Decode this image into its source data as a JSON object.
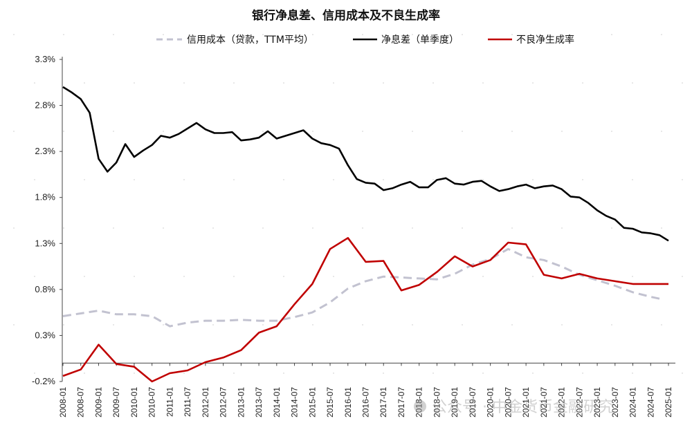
{
  "chart_data": {
    "type": "line",
    "title": "银行净息差、信用成本及不良生成率",
    "xlabel": "",
    "ylabel": "",
    "ylim": [
      -0.2,
      3.3
    ],
    "y_ticks": [
      "3.3%",
      "2.8%",
      "2.3%",
      "1.8%",
      "1.3%",
      "0.8%",
      "0.3%",
      "-0.2%"
    ],
    "y_tick_values": [
      3.3,
      2.8,
      2.3,
      1.8,
      1.3,
      0.8,
      0.3,
      -0.2
    ],
    "x_labels": [
      "2008-01",
      "2008-07",
      "2009-01",
      "2009-07",
      "2010-01",
      "2010-07",
      "2011-01",
      "2011-07",
      "2012-01",
      "2012-07",
      "2013-01",
      "2013-07",
      "2014-01",
      "2014-07",
      "2015-01",
      "2015-07",
      "2016-01",
      "2016-07",
      "2017-01",
      "2017-07",
      "2018-01",
      "2018-07",
      "2019-01",
      "2019-07",
      "2020-01",
      "2020-07",
      "2021-01",
      "2021-07",
      "2022-01",
      "2022-07",
      "2023-01",
      "2023-07",
      "2024-01",
      "2024-07",
      "2025-01"
    ],
    "x_range": [
      0,
      34
    ],
    "legend_position": "top",
    "grid": false,
    "series": [
      {
        "name": "信用成本（贷款，TTM平均）",
        "color": "#c2c2d0",
        "style": "dashed",
        "points": [
          [
            0,
            0.51
          ],
          [
            1,
            0.54
          ],
          [
            2,
            0.57
          ],
          [
            3,
            0.53
          ],
          [
            4,
            0.53
          ],
          [
            5,
            0.51
          ],
          [
            6,
            0.4
          ],
          [
            7,
            0.44
          ],
          [
            8,
            0.46
          ],
          [
            9,
            0.46
          ],
          [
            10,
            0.47
          ],
          [
            11,
            0.46
          ],
          [
            12,
            0.46
          ],
          [
            13,
            0.5
          ],
          [
            14,
            0.55
          ],
          [
            15,
            0.66
          ],
          [
            16,
            0.81
          ],
          [
            17,
            0.89
          ],
          [
            18,
            0.94
          ],
          [
            19,
            0.93
          ],
          [
            20,
            0.92
          ],
          [
            21,
            0.91
          ],
          [
            22,
            0.97
          ],
          [
            23,
            1.07
          ],
          [
            24,
            1.13
          ],
          [
            25,
            1.24
          ],
          [
            26,
            1.15
          ],
          [
            27,
            1.12
          ],
          [
            28,
            1.05
          ],
          [
            29,
            0.96
          ],
          [
            30,
            0.9
          ],
          [
            31,
            0.84
          ],
          [
            32,
            0.77
          ],
          [
            33,
            0.72
          ],
          [
            33.5,
            0.7
          ]
        ]
      },
      {
        "name": "净息差（单季度）",
        "color": "#000000",
        "style": "solid",
        "points": [
          [
            0,
            3.0
          ],
          [
            0.5,
            2.94
          ],
          [
            1,
            2.87
          ],
          [
            1.5,
            2.72
          ],
          [
            2,
            2.22
          ],
          [
            2.5,
            2.08
          ],
          [
            3,
            2.18
          ],
          [
            3.5,
            2.38
          ],
          [
            4,
            2.24
          ],
          [
            4.5,
            2.31
          ],
          [
            5,
            2.37
          ],
          [
            5.5,
            2.47
          ],
          [
            6,
            2.45
          ],
          [
            6.5,
            2.49
          ],
          [
            7,
            2.55
          ],
          [
            7.5,
            2.61
          ],
          [
            8,
            2.54
          ],
          [
            8.5,
            2.5
          ],
          [
            9,
            2.5
          ],
          [
            9.5,
            2.51
          ],
          [
            10,
            2.42
          ],
          [
            10.5,
            2.43
          ],
          [
            11,
            2.45
          ],
          [
            11.5,
            2.52
          ],
          [
            12,
            2.44
          ],
          [
            12.5,
            2.47
          ],
          [
            13,
            2.5
          ],
          [
            13.5,
            2.53
          ],
          [
            14,
            2.44
          ],
          [
            14.5,
            2.39
          ],
          [
            15,
            2.37
          ],
          [
            15.5,
            2.33
          ],
          [
            16,
            2.15
          ],
          [
            16.5,
            2.0
          ],
          [
            17,
            1.96
          ],
          [
            17.5,
            1.95
          ],
          [
            18,
            1.88
          ],
          [
            18.5,
            1.9
          ],
          [
            19,
            1.94
          ],
          [
            19.5,
            1.97
          ],
          [
            20,
            1.91
          ],
          [
            20.5,
            1.91
          ],
          [
            21,
            1.99
          ],
          [
            21.5,
            2.01
          ],
          [
            22,
            1.95
          ],
          [
            22.5,
            1.94
          ],
          [
            23,
            1.97
          ],
          [
            23.5,
            1.98
          ],
          [
            24,
            1.92
          ],
          [
            24.5,
            1.87
          ],
          [
            25,
            1.89
          ],
          [
            25.5,
            1.92
          ],
          [
            26,
            1.94
          ],
          [
            26.5,
            1.9
          ],
          [
            27,
            1.92
          ],
          [
            27.5,
            1.93
          ],
          [
            28,
            1.89
          ],
          [
            28.5,
            1.81
          ],
          [
            29,
            1.8
          ],
          [
            29.5,
            1.74
          ],
          [
            30,
            1.66
          ],
          [
            30.5,
            1.6
          ],
          [
            31,
            1.56
          ],
          [
            31.5,
            1.47
          ],
          [
            32,
            1.46
          ],
          [
            32.5,
            1.42
          ],
          [
            33,
            1.41
          ],
          [
            33.5,
            1.39
          ],
          [
            34,
            1.33
          ]
        ]
      },
      {
        "name": "不良净生成率",
        "color": "#c00000",
        "style": "solid",
        "points": [
          [
            0,
            -0.14
          ],
          [
            1,
            -0.07
          ],
          [
            2,
            0.2
          ],
          [
            3,
            -0.01
          ],
          [
            4,
            -0.04
          ],
          [
            5,
            -0.2
          ],
          [
            6,
            -0.11
          ],
          [
            7,
            -0.08
          ],
          [
            8,
            0.01
          ],
          [
            9,
            0.06
          ],
          [
            10,
            0.14
          ],
          [
            11,
            0.33
          ],
          [
            12,
            0.4
          ],
          [
            13,
            0.64
          ],
          [
            14,
            0.86
          ],
          [
            15,
            1.24
          ],
          [
            16,
            1.36
          ],
          [
            17,
            1.1
          ],
          [
            18,
            1.11
          ],
          [
            19,
            0.79
          ],
          [
            20,
            0.85
          ],
          [
            21,
            0.99
          ],
          [
            22,
            1.16
          ],
          [
            23,
            1.05
          ],
          [
            24,
            1.12
          ],
          [
            25,
            1.31
          ],
          [
            26,
            1.29
          ],
          [
            27,
            0.96
          ],
          [
            28,
            0.92
          ],
          [
            29,
            0.97
          ],
          [
            30,
            0.92
          ],
          [
            31,
            0.89
          ],
          [
            32,
            0.86
          ],
          [
            33,
            0.86
          ],
          [
            34,
            0.86
          ]
        ]
      }
    ],
    "watermark": "公众号 · 中金货币金融研究"
  }
}
